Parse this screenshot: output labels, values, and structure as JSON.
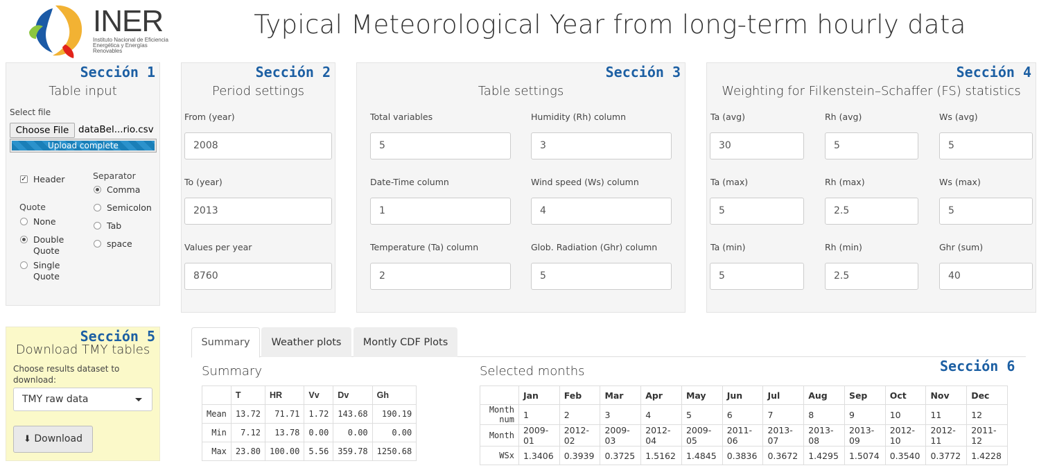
{
  "logo": {
    "text": "INER",
    "subtitle": "Instituto Nacional de Eficiencia Energética y Energías Renovables"
  },
  "page_title": "Typical Meteorological Year from long-term hourly data",
  "colors": {
    "section_label": "#1c5fa3",
    "panel_bg": "#f5f5f5",
    "download_panel_bg": "#fbf9c9",
    "progress": "#1a7fb8"
  },
  "sec1": {
    "label": "Sección 1",
    "title": "Table input",
    "select_file_label": "Select file",
    "choose_file_button": "Choose File",
    "file_name": "dataBel...rio.csv",
    "upload_status": "Upload complete",
    "upload_progress_pct": 100,
    "header_label": "Header",
    "header_checked": true,
    "separator_label": "Separator",
    "separator_options": [
      "Comma",
      "Semicolon",
      "Tab",
      "space"
    ],
    "separator_selected": "Comma",
    "quote_label": "Quote",
    "quote_options": [
      "None",
      "Double Quote",
      "Single Quote"
    ],
    "quote_selected": "Double Quote"
  },
  "sec2": {
    "label": "Sección 2",
    "title": "Period settings",
    "fields": [
      {
        "label": "From (year)",
        "value": "2008"
      },
      {
        "label": "To (year)",
        "value": "2013"
      },
      {
        "label": "Values per year",
        "value": "8760"
      }
    ]
  },
  "sec3": {
    "label": "Sección 3",
    "title": "Table settings",
    "fields": [
      {
        "label": "Total variables",
        "value": "5"
      },
      {
        "label": "Humidity (Rh) column",
        "value": "3"
      },
      {
        "label": "Date-Time column",
        "value": "1"
      },
      {
        "label": "Wind speed (Ws) column",
        "value": "4"
      },
      {
        "label": "Temperature (Ta) column",
        "value": "2"
      },
      {
        "label": "Glob. Radiation (Ghr) column",
        "value": "5"
      }
    ]
  },
  "sec4": {
    "label": "Sección 4",
    "title": "Weighting for Filkenstein–Schaffer (FS) statistics",
    "fields": [
      {
        "label": "Ta (avg)",
        "value": "30"
      },
      {
        "label": "Rh (avg)",
        "value": "5"
      },
      {
        "label": "Ws (avg)",
        "value": "5"
      },
      {
        "label": "Ta (max)",
        "value": "5"
      },
      {
        "label": "Rh (max)",
        "value": "2.5"
      },
      {
        "label": "Ws (max)",
        "value": "5"
      },
      {
        "label": "Ta (min)",
        "value": "5"
      },
      {
        "label": "Rh (min)",
        "value": "2.5"
      },
      {
        "label": "Ghr (sum)",
        "value": "40"
      }
    ]
  },
  "sec5": {
    "label": "Sección 5",
    "title": "Download TMY tables",
    "choose_label": "Choose results dataset to download:",
    "select_value": "TMY raw data",
    "download_button": "Download",
    "download_icon": "download-icon"
  },
  "sec6": {
    "label": "Sección 6",
    "tabs": [
      "Summary",
      "Weather plots",
      "Montly CDF Plots"
    ],
    "active_tab": "Summary",
    "summary_title": "Summary",
    "summary_table": {
      "headers": [
        "",
        "T",
        "HR",
        "Vv",
        "Dv",
        "Gh"
      ],
      "rows": [
        [
          "Mean",
          "13.72",
          "71.71",
          "1.72",
          "143.68",
          "190.19"
        ],
        [
          "Min",
          "7.12",
          "13.78",
          "0.00",
          "0.00",
          "0.00"
        ],
        [
          "Max",
          "23.80",
          "100.00",
          "5.56",
          "359.78",
          "1250.68"
        ]
      ]
    },
    "months_title": "Selected months",
    "months_table": {
      "headers": [
        "",
        "Jan",
        "Feb",
        "Mar",
        "Apr",
        "May",
        "Jun",
        "Jul",
        "Aug",
        "Sep",
        "Oct",
        "Nov",
        "Dec"
      ],
      "rows": [
        [
          "Month num",
          "1",
          "2",
          "3",
          "4",
          "5",
          "6",
          "7",
          "8",
          "9",
          "10",
          "11",
          "12"
        ],
        [
          "Month",
          "2009-01",
          "2012-02",
          "2009-03",
          "2012-04",
          "2009-05",
          "2011-06",
          "2013-07",
          "2013-08",
          "2013-09",
          "2012-10",
          "2012-11",
          "2011-12"
        ],
        [
          "WSx",
          "1.3406",
          "0.3939",
          "0.3725",
          "1.5162",
          "1.4845",
          "0.3836",
          "0.3672",
          "1.4295",
          "1.5074",
          "0.3540",
          "0.3772",
          "1.4228"
        ]
      ]
    }
  }
}
